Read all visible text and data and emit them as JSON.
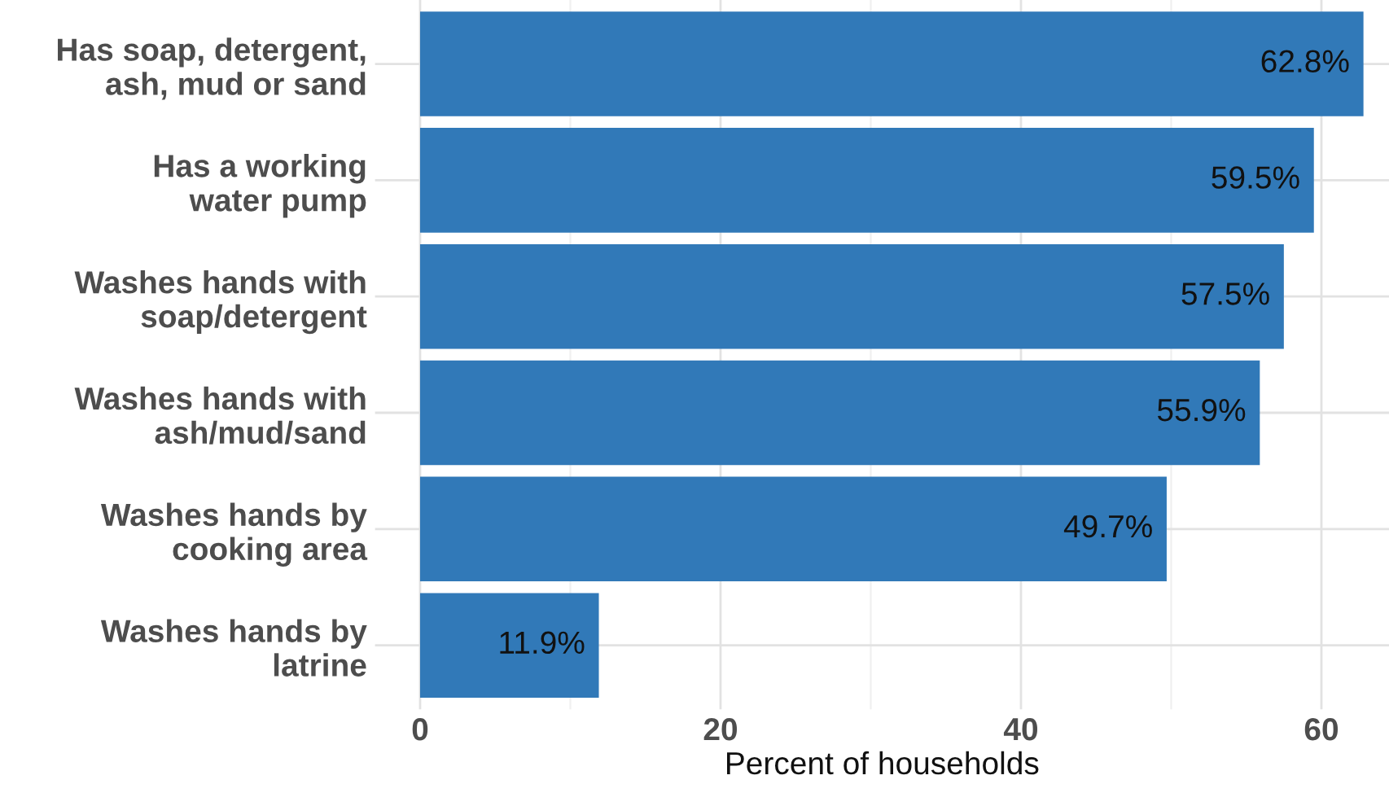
{
  "chart_data": {
    "type": "bar",
    "orientation": "horizontal",
    "xlabel": "Percent of households",
    "categories": [
      "Has soap, detergent,\nash, mud or sand",
      "Has a working\nwater pump",
      "Washes hands with\nsoap/detergent",
      "Washes hands with\nash/mud/sand",
      "Washes hands by\ncooking area",
      "Washes hands by\nlatrine"
    ],
    "values": [
      62.8,
      59.5,
      57.5,
      55.9,
      49.7,
      11.9
    ],
    "value_labels": [
      "62.8%",
      "59.5%",
      "57.5%",
      "55.9%",
      "49.7%",
      "11.9%"
    ],
    "color": "#3179b8",
    "xlim": [
      -3,
      64.5
    ],
    "xticks": [
      0,
      20,
      40,
      60
    ],
    "grid": true,
    "legend": false
  }
}
